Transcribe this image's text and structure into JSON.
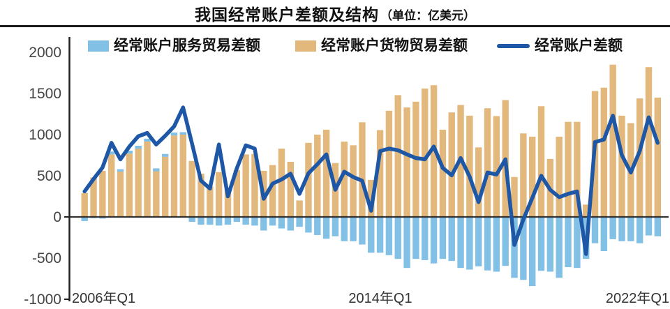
{
  "title": {
    "text": "我国经常账户差额及结构",
    "unit": "（单位：亿美元）"
  },
  "legend": {
    "items": [
      {
        "label": "经常账户服务贸易差额",
        "color": "#82C0E6",
        "marker": "square"
      },
      {
        "label": "经常账户货物贸易差额",
        "color": "#E3B87C",
        "marker": "square"
      },
      {
        "label": "经常账户差额",
        "color": "#1D57A5",
        "marker": "line"
      }
    ]
  },
  "chart_data": {
    "type": "bar+line",
    "stacked": true,
    "title": "我国经常账户差额及结构",
    "unit": "亿美元",
    "x_tick_labels": [
      "2006年Q1",
      "2014年Q1",
      "2022年Q1"
    ],
    "y_ticks": [
      2000,
      1500,
      1000,
      500,
      0,
      -500,
      -1000
    ],
    "ylim": [
      -1000,
      2000
    ],
    "grid": false,
    "legend_position": "top",
    "quarters": [
      "2006Q1",
      "2006Q2",
      "2006Q3",
      "2006Q4",
      "2007Q1",
      "2007Q2",
      "2007Q3",
      "2007Q4",
      "2008Q1",
      "2008Q2",
      "2008Q3",
      "2008Q4",
      "2009Q1",
      "2009Q2",
      "2009Q3",
      "2009Q4",
      "2010Q1",
      "2010Q2",
      "2010Q3",
      "2010Q4",
      "2011Q1",
      "2011Q2",
      "2011Q3",
      "2011Q4",
      "2012Q1",
      "2012Q2",
      "2012Q3",
      "2012Q4",
      "2013Q1",
      "2013Q2",
      "2013Q3",
      "2013Q4",
      "2014Q1",
      "2014Q2",
      "2014Q3",
      "2014Q4",
      "2015Q1",
      "2015Q2",
      "2015Q3",
      "2015Q4",
      "2016Q1",
      "2016Q2",
      "2016Q3",
      "2016Q4",
      "2017Q1",
      "2017Q2",
      "2017Q3",
      "2017Q4",
      "2018Q1",
      "2018Q2",
      "2018Q3",
      "2018Q4",
      "2019Q1",
      "2019Q2",
      "2019Q3",
      "2019Q4",
      "2020Q1",
      "2020Q2",
      "2020Q3",
      "2020Q4",
      "2021Q1",
      "2021Q2",
      "2021Q3",
      "2021Q4",
      "2022Q1"
    ],
    "series": [
      {
        "name": "经常账户服务贸易差额",
        "type": "bar",
        "color": "#82C0E6",
        "values": [
          -50,
          -15,
          -20,
          35,
          30,
          35,
          35,
          35,
          35,
          35,
          35,
          30,
          -60,
          -95,
          -95,
          -105,
          -95,
          -60,
          -95,
          -105,
          -165,
          -105,
          -140,
          -165,
          -120,
          -190,
          -220,
          -265,
          -235,
          -295,
          -295,
          -335,
          -435,
          -435,
          -465,
          -510,
          -620,
          -510,
          -525,
          -565,
          -510,
          -535,
          -620,
          -640,
          -600,
          -650,
          -665,
          -595,
          -740,
          -765,
          -840,
          -655,
          -665,
          -740,
          -610,
          -620,
          -510,
          -320,
          -415,
          -270,
          -295,
          -295,
          -320,
          -225,
          -235
        ]
      },
      {
        "name": "经常账户货物贸易差额",
        "type": "bar",
        "color": "#E3B87C",
        "values": [
          290,
          480,
          560,
          760,
          550,
          770,
          830,
          915,
          555,
          730,
          990,
          1000,
          680,
          525,
          370,
          545,
          355,
          570,
          760,
          765,
          560,
          630,
          830,
          670,
          200,
          900,
          1000,
          1060,
          655,
          915,
          870,
          1150,
          450,
          1055,
          1290,
          1480,
          1330,
          1400,
          1560,
          1600,
          1060,
          1270,
          1360,
          1230,
          845,
          1320,
          1225,
          1420,
          485,
          1015,
          975,
          1345,
          705,
          975,
          1155,
          1155,
          150,
          1530,
          1570,
          1850,
          1230,
          1140,
          1440,
          1820,
          1450
        ]
      },
      {
        "name": "经常账户差额",
        "type": "line",
        "color": "#1D57A5",
        "values": [
          310,
          460,
          600,
          900,
          700,
          855,
          980,
          1020,
          880,
          985,
          1100,
          1330,
          890,
          440,
          345,
          880,
          250,
          590,
          870,
          830,
          220,
          405,
          455,
          525,
          280,
          530,
          640,
          760,
          330,
          550,
          485,
          440,
          75,
          800,
          830,
          810,
          760,
          715,
          700,
          855,
          595,
          505,
          715,
          490,
          180,
          540,
          515,
          700,
          -340,
          -30,
          230,
          500,
          330,
          240,
          280,
          310,
          -450,
          910,
          940,
          1230,
          750,
          540,
          800,
          1210,
          900
        ]
      }
    ]
  }
}
